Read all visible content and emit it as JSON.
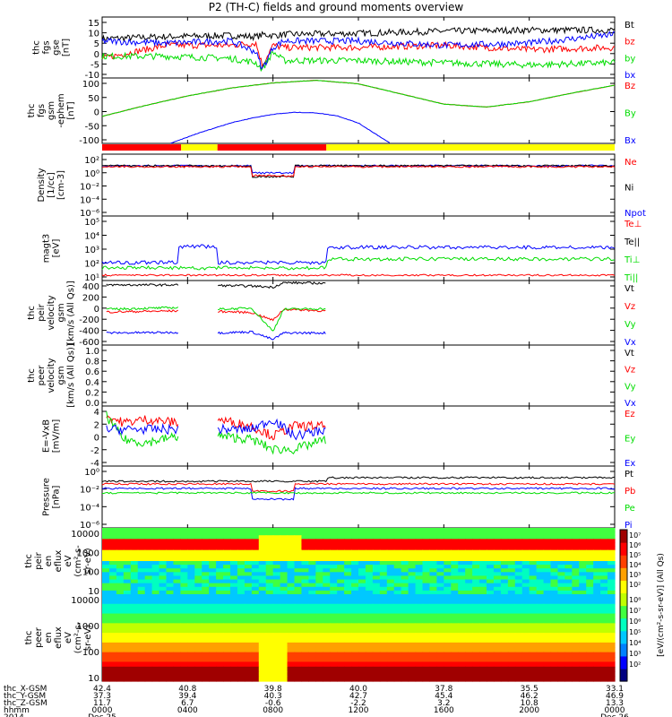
{
  "title": "P2 (TH-C) fields and ground moments overview",
  "colors": {
    "black": "#000000",
    "red": "#ff0000",
    "green": "#00dd00",
    "blue": "#0000ff",
    "yellow": "#ffff00",
    "frame": "#000000"
  },
  "panels": [
    {
      "id": "fgs-gse",
      "ylabel": [
        "thc",
        "fgs",
        "gse",
        "[nT]"
      ],
      "yticks": [
        "15",
        "10",
        "5",
        "0",
        "-5",
        "-10"
      ],
      "ylim": [
        -12,
        16
      ],
      "legend": [
        {
          "label": "Bt",
          "color": "black"
        },
        {
          "label": "bz",
          "color": "red"
        },
        {
          "label": "by",
          "color": "green"
        },
        {
          "label": "bx",
          "color": "blue"
        }
      ]
    },
    {
      "id": "fgs-gsm-ephem",
      "ylabel": [
        "thc",
        "fgs",
        "gsm",
        "-ephem",
        "[nT]"
      ],
      "yticks": [
        "100",
        "50",
        "0",
        "-50",
        "-100"
      ],
      "ylim": [
        -125,
        100
      ],
      "legend": [
        {
          "label": "Bz",
          "color": "red"
        },
        {
          "label": "By",
          "color": "green"
        },
        {
          "label": "Bx",
          "color": "blue"
        }
      ]
    },
    {
      "id": "density",
      "ylabel": [
        "Density",
        "[1/cc]",
        "[cm-3]"
      ],
      "yticks": [
        "10²",
        "10⁰",
        "10⁻²",
        "10⁻⁴",
        "10⁻⁶"
      ],
      "legend": [
        {
          "label": "Ne",
          "color": "red"
        },
        {
          "label": "Ni",
          "color": "black"
        },
        {
          "label": "Npot",
          "color": "blue"
        }
      ]
    },
    {
      "id": "temperature",
      "ylabel": [
        "magt3",
        "[eV]"
      ],
      "yticks": [
        "10⁵",
        "10⁴",
        "10³",
        "10²",
        "10¹"
      ],
      "legend": [
        {
          "label": "Te⊥",
          "color": "red"
        },
        {
          "label": "Te||",
          "color": "black"
        },
        {
          "label": "Ti⊥",
          "color": "green"
        },
        {
          "label": "Ti||",
          "color": "green"
        }
      ]
    },
    {
      "id": "peir-velocity",
      "ylabel": [
        "thc",
        "peir",
        "velocity",
        "gsm",
        "[km/s (All Qs)]"
      ],
      "yticks": [
        "400",
        "200",
        "0",
        "-200",
        "-400",
        "-600"
      ],
      "ylim": [
        -650,
        520
      ],
      "legend": [
        {
          "label": "Vt",
          "color": "black"
        },
        {
          "label": "Vz",
          "color": "red"
        },
        {
          "label": "Vy",
          "color": "green"
        },
        {
          "label": "Vx",
          "color": "blue"
        }
      ]
    },
    {
      "id": "peer-velocity",
      "ylabel": [
        "thc",
        "peer",
        "velocity",
        "gsm",
        "[km/s (All Qs)]"
      ],
      "yticks": [
        "1.0",
        "0.8",
        "0.6",
        "0.4",
        "0.2",
        "0.0"
      ],
      "ylim": [
        0,
        1
      ],
      "legend": [
        {
          "label": "Vt",
          "color": "black"
        },
        {
          "label": "Vz",
          "color": "red"
        },
        {
          "label": "Vy",
          "color": "green"
        },
        {
          "label": "Vx",
          "color": "blue"
        }
      ]
    },
    {
      "id": "efield",
      "ylabel": [
        "E=-VxB",
        "[mV/m]"
      ],
      "yticks": [
        "4",
        "2",
        "0",
        "-2",
        "-4"
      ],
      "ylim": [
        -5.5,
        3.5
      ],
      "legend": [
        {
          "label": "Ez",
          "color": "red"
        },
        {
          "label": "Ey",
          "color": "green"
        },
        {
          "label": "Ex",
          "color": "blue"
        }
      ]
    },
    {
      "id": "pressure",
      "ylabel": [
        "Pressure",
        "[nPa]"
      ],
      "yticks": [
        "10⁰",
        "10⁻²",
        "10⁻⁴",
        "10⁻⁶"
      ],
      "legend": [
        {
          "label": "Pt",
          "color": "black"
        },
        {
          "label": "Pb",
          "color": "red"
        },
        {
          "label": "Pe",
          "color": "green"
        },
        {
          "label": "Pi",
          "color": "blue"
        }
      ]
    },
    {
      "id": "peir-spectrogram",
      "ylabel": [
        "thc",
        "peir",
        "en",
        "eflux",
        "eV",
        "(cm²-s-",
        "sr-eV)"
      ],
      "yticks": [
        "10000",
        "1000",
        "100",
        "10"
      ]
    },
    {
      "id": "peer-spectrogram",
      "ylabel": [
        "thc",
        "peer",
        "en",
        "eflux",
        "eV",
        "(cm²-s-",
        "sr-eV)"
      ],
      "yticks": [
        "10000",
        "1000",
        "100",
        "10"
      ]
    }
  ],
  "colorbar": {
    "label": "[eV/(cm²-s-sr-eV)] (All Qs)",
    "ticks_top": [
      "10⁷",
      "10⁶",
      "10⁵",
      "10⁴",
      "10³",
      "10²"
    ],
    "ticks_bottom": [
      "10⁸",
      "10⁷",
      "10⁶",
      "10⁵",
      "10⁴",
      "10³",
      "10²"
    ]
  },
  "chart_data": {
    "type": "line",
    "title": "P2 (TH-C) fields and ground moments overview",
    "x_axis": {
      "rows": [
        {
          "label": "thc_X-GSM",
          "values": [
            "42.4",
            "40.8",
            "39.8",
            "40.0",
            "37.8",
            "35.5",
            "33.1"
          ]
        },
        {
          "label": "thc_Y-GSM",
          "values": [
            "37.3",
            "39.4",
            "40.3",
            "42.7",
            "45.4",
            "46.2",
            "46.9"
          ]
        },
        {
          "label": "thc_Z-GSM",
          "values": [
            "11.7",
            "6.7",
            "-0.6",
            "-2.2",
            "3.2",
            "10.8",
            "13.3"
          ]
        },
        {
          "label": "hhmm",
          "values": [
            "0000",
            "0400",
            "0800",
            "1200",
            "1600",
            "2000",
            "0000"
          ]
        },
        {
          "label": "2014",
          "values": [
            "Dec 25",
            "",
            "",
            "",
            "",
            "",
            "Dec 26"
          ]
        }
      ],
      "range_hours": [
        0,
        24
      ]
    },
    "mode_bar": [
      {
        "from": 0,
        "to": 3.7,
        "color": "red"
      },
      {
        "from": 3.7,
        "to": 5.4,
        "color": "yellow"
      },
      {
        "from": 5.4,
        "to": 10.5,
        "color": "red"
      },
      {
        "from": 10.5,
        "to": 24,
        "color": "yellow"
      }
    ],
    "series": [
      {
        "panel": "fgs-gse",
        "name": "Bt",
        "x": [
          0,
          3,
          6,
          7.2,
          7.6,
          8,
          8.6,
          12,
          16,
          20,
          24
        ],
        "y": [
          6,
          7,
          7.5,
          7,
          8,
          7.5,
          8,
          8.5,
          9.5,
          10,
          10
        ]
      },
      {
        "panel": "fgs-gse",
        "name": "bz",
        "x": [
          0,
          3,
          6,
          7.2,
          7.5,
          8,
          8.5,
          12,
          16,
          20,
          24
        ],
        "y": [
          -3,
          3,
          3,
          4,
          -6,
          3,
          2,
          2,
          3,
          1,
          2
        ]
      },
      {
        "panel": "fgs-gse",
        "name": "by",
        "x": [
          0,
          3,
          6,
          7.2,
          7.5,
          8,
          8.5,
          12,
          16,
          20,
          24
        ],
        "y": [
          -2,
          -2,
          -3,
          -5,
          -8,
          0,
          -4,
          -4,
          -5,
          -6,
          -5
        ]
      },
      {
        "panel": "fgs-gse",
        "name": "bx",
        "x": [
          0,
          3,
          6,
          7.2,
          7.5,
          8,
          8.5,
          12,
          16,
          20,
          24
        ],
        "y": [
          5,
          4,
          5,
          0,
          -8,
          2,
          5,
          5,
          3,
          4,
          8
        ]
      },
      {
        "panel": "fgs-gsm-ephem",
        "name": "Bz",
        "x": [
          0,
          2,
          4,
          6,
          8,
          10,
          12,
          14,
          16,
          18,
          20,
          22,
          24
        ],
        "y": [
          -32,
          5,
          38,
          65,
          83,
          92,
          80,
          45,
          10,
          0,
          18,
          48,
          75
        ]
      },
      {
        "panel": "fgs-gsm-ephem",
        "name": "By",
        "x": [
          0,
          2,
          4,
          6,
          8,
          10,
          12,
          14,
          16,
          18,
          20,
          22,
          24
        ],
        "y": [
          -32,
          5,
          38,
          65,
          83,
          92,
          80,
          45,
          10,
          0,
          18,
          48,
          75
        ]
      },
      {
        "panel": "fgs-gsm-ephem",
        "name": "Bx",
        "x": [
          3.2,
          4.5,
          6,
          7,
          8,
          9,
          10,
          11,
          12,
          13.5
        ],
        "y": [
          -125,
          -90,
          -55,
          -38,
          -25,
          -18,
          -20,
          -30,
          -55,
          -125
        ]
      },
      {
        "panel": "peir-velocity",
        "name": "Vt",
        "x": [
          0.2,
          3.6,
          5.4,
          7,
          8,
          8.5,
          10.5
        ],
        "y": [
          440,
          440,
          430,
          420,
          400,
          480,
          470
        ]
      },
      {
        "panel": "peir-velocity",
        "name": "Vz",
        "x": [
          0.2,
          3.6,
          5.4,
          7,
          8,
          8.5,
          10.5
        ],
        "y": [
          -50,
          -30,
          -40,
          -60,
          -200,
          0,
          -30
        ]
      },
      {
        "panel": "peir-velocity",
        "name": "Vy",
        "x": [
          0.2,
          3.6,
          5.4,
          7,
          8,
          8.5,
          10.5
        ],
        "y": [
          0,
          30,
          0,
          20,
          -400,
          0,
          10
        ]
      },
      {
        "panel": "peir-velocity",
        "name": "Vx",
        "x": [
          0.2,
          3.6,
          5.4,
          7,
          8,
          8.5,
          10.5
        ],
        "y": [
          -430,
          -420,
          -430,
          -410,
          -550,
          -430,
          -430
        ]
      },
      {
        "panel": "efield",
        "name": "Ez",
        "x": [
          0.2,
          1,
          2,
          3.6,
          5.4,
          7,
          8,
          9,
          10.5
        ],
        "y": [
          2,
          1,
          1.5,
          1,
          1.5,
          0.5,
          -1,
          0.5,
          0.5
        ]
      },
      {
        "panel": "efield",
        "name": "Ey",
        "x": [
          0.2,
          1,
          2,
          3.6,
          5.4,
          7,
          8,
          9,
          10.5
        ],
        "y": [
          2,
          -1.5,
          -2,
          -1,
          -1,
          -1.5,
          -3,
          -3,
          -1.5
        ]
      },
      {
        "panel": "efield",
        "name": "Ex",
        "x": [
          0.2,
          1,
          2,
          3.6,
          5.4,
          7,
          8,
          9,
          10.5
        ],
        "y": [
          0,
          0,
          0,
          0,
          0,
          0,
          1.5,
          -1,
          0
        ]
      }
    ]
  }
}
